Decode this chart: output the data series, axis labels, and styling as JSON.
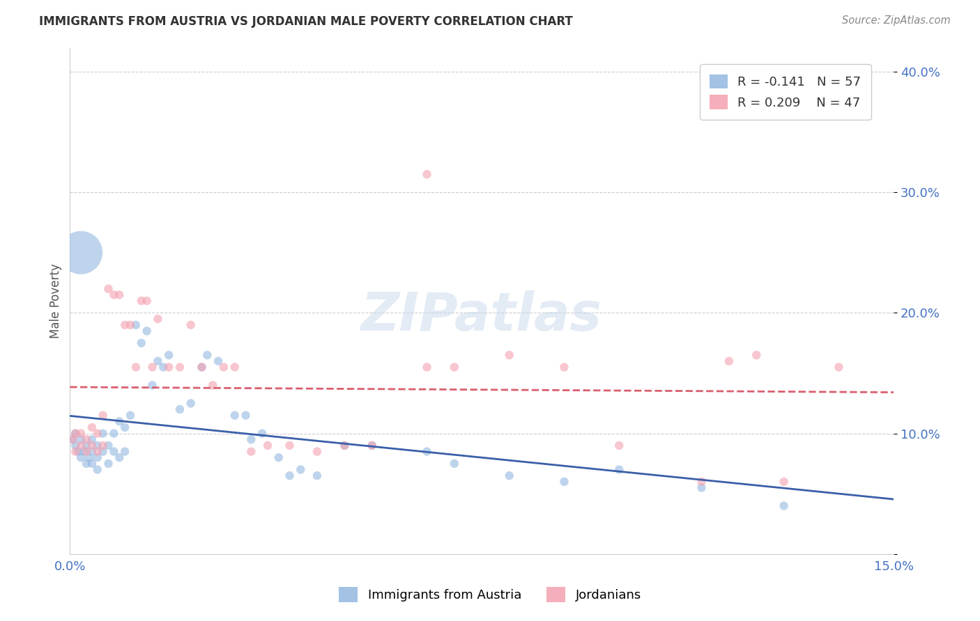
{
  "title": "IMMIGRANTS FROM AUSTRIA VS JORDANIAN MALE POVERTY CORRELATION CHART",
  "source": "Source: ZipAtlas.com",
  "ylabel": "Male Poverty",
  "xlim": [
    0.0,
    0.15
  ],
  "ylim": [
    0.0,
    0.42
  ],
  "xtick_positions": [
    0.0,
    0.05,
    0.1,
    0.15
  ],
  "xtick_labels": [
    "0.0%",
    "",
    "",
    "15.0%"
  ],
  "ytick_positions": [
    0.0,
    0.1,
    0.2,
    0.3,
    0.4
  ],
  "ytick_labels": [
    "",
    "10.0%",
    "20.0%",
    "30.0%",
    "40.0%"
  ],
  "tick_color": "#4472c4",
  "blue_color": "#93b8e0",
  "pink_color": "#f4a0b0",
  "blue_line_color": "#3a5fa8",
  "pink_line_color": "#d95f6e",
  "watermark": "ZIPatlas",
  "legend_label1": "Immigrants from Austria",
  "legend_label2": "Jordanians",
  "blue_scatter_x": [
    0.0005,
    0.001,
    0.001,
    0.0015,
    0.002,
    0.002,
    0.0025,
    0.003,
    0.003,
    0.0035,
    0.004,
    0.004,
    0.004,
    0.005,
    0.005,
    0.005,
    0.006,
    0.006,
    0.007,
    0.007,
    0.008,
    0.008,
    0.009,
    0.009,
    0.01,
    0.01,
    0.011,
    0.012,
    0.013,
    0.014,
    0.015,
    0.016,
    0.017,
    0.018,
    0.02,
    0.022,
    0.024,
    0.025,
    0.027,
    0.03,
    0.032,
    0.033,
    0.035,
    0.038,
    0.04,
    0.042,
    0.045,
    0.05,
    0.055,
    0.065,
    0.07,
    0.08,
    0.09,
    0.1,
    0.115,
    0.13,
    0.002
  ],
  "blue_scatter_y": [
    0.095,
    0.09,
    0.1,
    0.085,
    0.08,
    0.095,
    0.085,
    0.075,
    0.09,
    0.08,
    0.085,
    0.075,
    0.095,
    0.07,
    0.08,
    0.09,
    0.085,
    0.1,
    0.075,
    0.09,
    0.085,
    0.1,
    0.11,
    0.08,
    0.105,
    0.085,
    0.115,
    0.19,
    0.175,
    0.185,
    0.14,
    0.16,
    0.155,
    0.165,
    0.12,
    0.125,
    0.155,
    0.165,
    0.16,
    0.115,
    0.115,
    0.095,
    0.1,
    0.08,
    0.065,
    0.07,
    0.065,
    0.09,
    0.09,
    0.085,
    0.075,
    0.065,
    0.06,
    0.07,
    0.055,
    0.04,
    0.25
  ],
  "blue_scatter_sizes": [
    80,
    80,
    80,
    80,
    80,
    80,
    80,
    80,
    80,
    80,
    80,
    80,
    80,
    80,
    80,
    80,
    80,
    80,
    80,
    80,
    80,
    80,
    80,
    80,
    80,
    80,
    80,
    80,
    80,
    80,
    80,
    80,
    80,
    80,
    80,
    80,
    80,
    80,
    80,
    80,
    80,
    80,
    80,
    80,
    80,
    80,
    80,
    80,
    80,
    80,
    80,
    80,
    80,
    80,
    80,
    80,
    2000
  ],
  "pink_scatter_x": [
    0.0005,
    0.001,
    0.001,
    0.002,
    0.002,
    0.003,
    0.003,
    0.004,
    0.004,
    0.005,
    0.005,
    0.006,
    0.006,
    0.007,
    0.008,
    0.009,
    0.01,
    0.011,
    0.012,
    0.013,
    0.014,
    0.015,
    0.016,
    0.018,
    0.02,
    0.022,
    0.024,
    0.026,
    0.028,
    0.03,
    0.033,
    0.036,
    0.04,
    0.045,
    0.05,
    0.055,
    0.065,
    0.08,
    0.09,
    0.1,
    0.115,
    0.12,
    0.125,
    0.13,
    0.14,
    0.065,
    0.07
  ],
  "pink_scatter_y": [
    0.095,
    0.085,
    0.1,
    0.09,
    0.1,
    0.085,
    0.095,
    0.09,
    0.105,
    0.085,
    0.1,
    0.09,
    0.115,
    0.22,
    0.215,
    0.215,
    0.19,
    0.19,
    0.155,
    0.21,
    0.21,
    0.155,
    0.195,
    0.155,
    0.155,
    0.19,
    0.155,
    0.14,
    0.155,
    0.155,
    0.085,
    0.09,
    0.09,
    0.085,
    0.09,
    0.09,
    0.155,
    0.165,
    0.155,
    0.09,
    0.06,
    0.16,
    0.165,
    0.06,
    0.155,
    0.315,
    0.155
  ],
  "pink_scatter_sizes": [
    80,
    80,
    80,
    80,
    80,
    80,
    80,
    80,
    80,
    80,
    80,
    80,
    80,
    80,
    80,
    80,
    80,
    80,
    80,
    80,
    80,
    80,
    80,
    80,
    80,
    80,
    80,
    80,
    80,
    80,
    80,
    80,
    80,
    80,
    80,
    80,
    80,
    80,
    80,
    80,
    80,
    80,
    80,
    80,
    80,
    80,
    80
  ]
}
